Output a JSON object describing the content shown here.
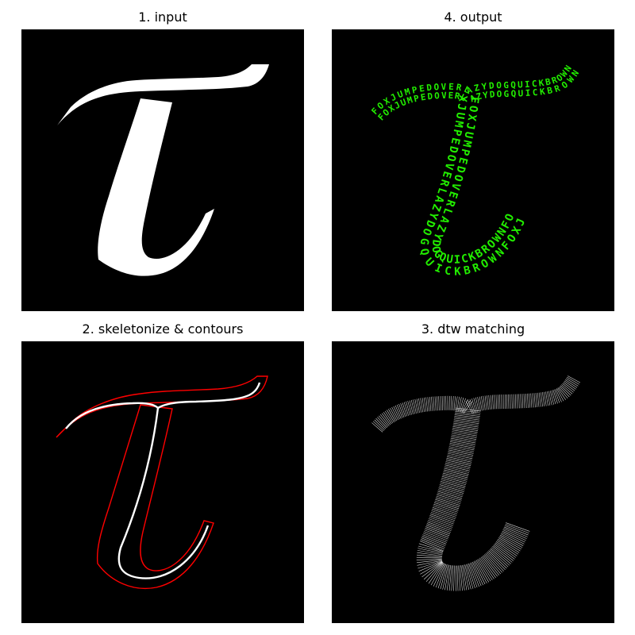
{
  "panels": {
    "input": {
      "title": "1. input"
    },
    "output": {
      "title": "4. output",
      "text_fill": "#22ee00",
      "word_cycle": "FOXJUMPEDOVERLAZYDOGQUICKBROWN"
    },
    "skeleton": {
      "title": "2. skeletonize & contours",
      "contour_color": "#ff0000",
      "skeleton_color": "#ffffff"
    },
    "dtw": {
      "title": "3. dtw matching",
      "line_color": "#ffffff"
    }
  },
  "colors": {
    "panel_bg": "#000000",
    "shape_fill": "#ffffff"
  }
}
